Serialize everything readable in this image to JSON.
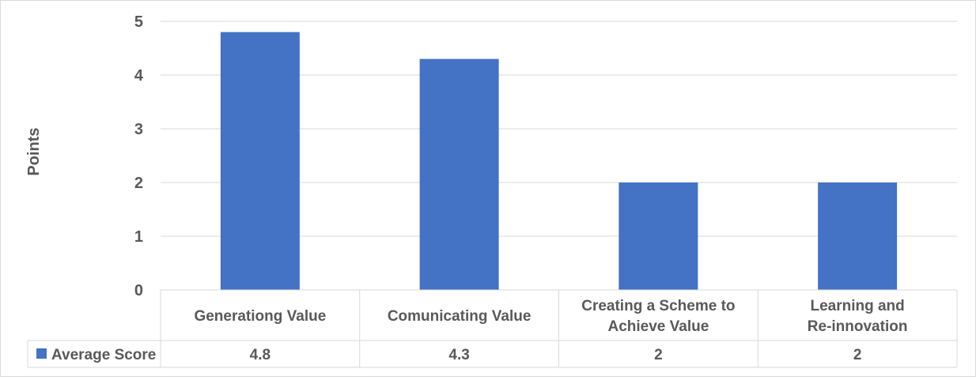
{
  "chart_data": {
    "type": "bar",
    "ylabel": "Points",
    "ylim": [
      0,
      5
    ],
    "yticks": [
      0,
      1,
      2,
      3,
      4,
      5
    ],
    "categories": [
      [
        "Generationg Value"
      ],
      [
        "Comunicating Value"
      ],
      [
        "Creating a Scheme to",
        "Achieve Value"
      ],
      [
        "Learning and",
        "Re-innovation"
      ]
    ],
    "series": [
      {
        "name": "Average Score",
        "values": [
          4.8,
          4.3,
          2,
          2
        ],
        "value_labels": [
          "4.8",
          "4.3",
          "2",
          "2"
        ],
        "color": "#4472c4"
      }
    ],
    "gridlines": true,
    "legend": "data-table",
    "data_table": true
  },
  "colors": {
    "bar": "#4472c4",
    "grid": "#d9d9d9",
    "text": "#595959"
  }
}
